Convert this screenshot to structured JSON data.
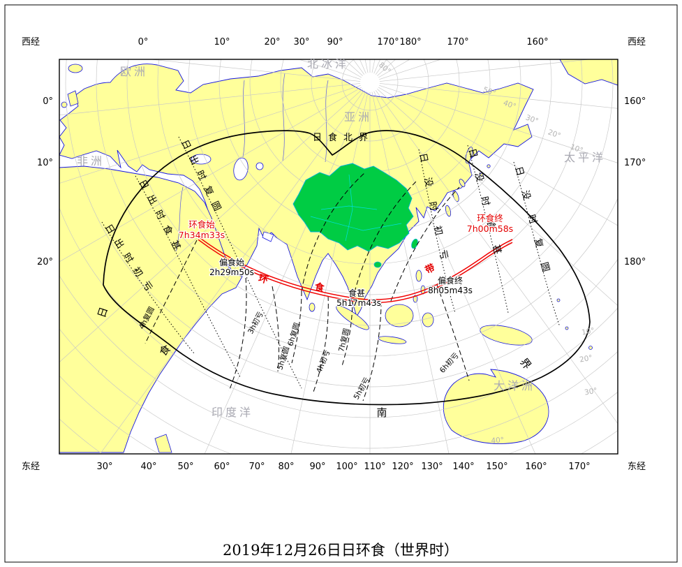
{
  "title": "2019年12月26日日环食（世界时）",
  "frame": {
    "corner_labels": {
      "top_left": "西经",
      "top_right": "西经",
      "bottom_left": "东经",
      "bottom_right": "东经"
    },
    "top_ticks": [
      "0°",
      "10°",
      "20°",
      "30°",
      "90°",
      "170°",
      "180°",
      "170°",
      "160°"
    ],
    "bottom_ticks": [
      "30°",
      "40°",
      "50°",
      "60°",
      "70°",
      "80°",
      "90°",
      "100°",
      "110°",
      "120°",
      "130°",
      "140°",
      "150°",
      "160°",
      "170°"
    ],
    "left_ticks": [
      "0°",
      "10°",
      "20°"
    ],
    "right_ticks": [
      "160°",
      "170°",
      "180°"
    ]
  },
  "regions": {
    "europe": "欧洲",
    "africa": "非洲",
    "asia": "亚洲",
    "oceania": "大洋洲",
    "arctic": "北冰洋",
    "pacific": "太平洋",
    "indian": "印度洋"
  },
  "eclipse": {
    "annular_start_label": "环食始",
    "annular_start_time": "7h34m33s",
    "annular_end_label": "环食终",
    "annular_end_time": "7h00m58s",
    "partial_start_label": "偏食始",
    "partial_start_time": "2h29m50s",
    "partial_end_label": "偏食终",
    "partial_end_time": "8h05m43s",
    "greatest_label": "食甚",
    "greatest_time": "5h17m43s",
    "north_limit": "日食北界",
    "south_limit_chars": [
      "日",
      "食",
      "南",
      "界"
    ],
    "band_chars": [
      "环",
      "食",
      "带"
    ],
    "sunrise_first": "日出时初亏",
    "sunrise_max": "日出时食甚",
    "sunrise_last": "日出时复圆",
    "sunset_first": "日没时初亏",
    "sunset_max": "日没时食甚",
    "sunset_last": "日没时复圆",
    "contact_lines": [
      "4h复圆",
      "3h初亏",
      "6h复圆",
      "5h复圆",
      "7h复圆",
      "4h初亏",
      "5h初亏",
      "6h初亏"
    ]
  },
  "graticule_labels": [
    "80°",
    "50°",
    "40°",
    "30°",
    "20°",
    "10°",
    "10°",
    "20°",
    "30°",
    "40°"
  ],
  "colors": {
    "land": "#ffff9b",
    "china": "#00cc44",
    "coast": "#1515e0",
    "path_red": "#f00000",
    "graticule": "#c6c6c6"
  }
}
